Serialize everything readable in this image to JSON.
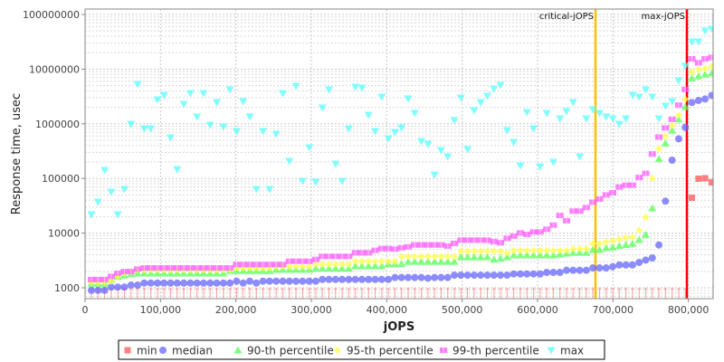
{
  "chart_data": {
    "type": "scatter",
    "title": "",
    "xlabel": "jOPS",
    "ylabel": "Response time, usec",
    "xlim": [
      0,
      833000
    ],
    "ylim": [
      630,
      126000000
    ],
    "yscale": "log",
    "grid": true,
    "legend_position": "bottom",
    "x_ticks": [
      0,
      100000,
      200000,
      300000,
      400000,
      500000,
      600000,
      700000,
      800000
    ],
    "x_tick_labels": [
      "0",
      "100,000",
      "200,000",
      "300,000",
      "400,000",
      "500,000",
      "600,000",
      "700,000",
      "800,000"
    ],
    "y_ticks": [
      1000,
      10000,
      100000,
      1000000,
      10000000,
      100000000
    ],
    "y_tick_labels": [
      "1000",
      "10000",
      "100000",
      "1000000",
      "10000000",
      "100000000"
    ],
    "annotations": [
      {
        "label": "critical-jOPS",
        "x": 676800,
        "color": "#ffc000"
      },
      {
        "label": "max-jOPS",
        "x": 798000,
        "color": "#ff0000"
      }
    ],
    "x": [
      8400,
      17150,
      25900,
      34650,
      43400,
      52150,
      60900,
      69650,
      78400,
      87150,
      95900,
      104650,
      113400,
      122150,
      130900,
      139650,
      148400,
      157150,
      165900,
      174650,
      183400,
      192150,
      200900,
      209650,
      218400,
      227150,
      235900,
      244650,
      253400,
      262150,
      270900,
      279650,
      288400,
      297150,
      305900,
      314650,
      323400,
      332150,
      340900,
      349650,
      358400,
      367150,
      375900,
      384650,
      393400,
      402150,
      410900,
      419650,
      428400,
      437150,
      445900,
      454650,
      463400,
      472150,
      480900,
      489650,
      498400,
      507150,
      515900,
      524650,
      533400,
      542150,
      550900,
      559650,
      568400,
      577150,
      585900,
      594650,
      603400,
      612150,
      620900,
      629650,
      638400,
      647150,
      655900,
      664650,
      673400,
      682150,
      690900,
      699650,
      708400,
      717150,
      725900,
      734650,
      743400,
      752150,
      760900,
      769650,
      778400,
      787150,
      795900,
      804650,
      813400,
      822150,
      830900
    ],
    "series": [
      {
        "name": "min",
        "marker": "square",
        "color": "#ff5555",
        "values": [
          500,
          500,
          500,
          500,
          500,
          500,
          500,
          500,
          500,
          500,
          500,
          500,
          500,
          500,
          500,
          500,
          500,
          500,
          500,
          500,
          500,
          500,
          500,
          500,
          500,
          500,
          500,
          500,
          500,
          500,
          500,
          500,
          500,
          500,
          500,
          500,
          500,
          500,
          500,
          500,
          500,
          500,
          500,
          500,
          500,
          500,
          500,
          500,
          500,
          500,
          500,
          500,
          500,
          500,
          500,
          500,
          500,
          500,
          500,
          500,
          500,
          500,
          500,
          500,
          500,
          500,
          500,
          500,
          500,
          500,
          500,
          500,
          500,
          500,
          500,
          500,
          500,
          500,
          500,
          500,
          500,
          500,
          500,
          500,
          500,
          500,
          500,
          500,
          500,
          500,
          500,
          44500,
          99000,
          101000,
          85000
        ]
      },
      {
        "name": "median",
        "marker": "circle",
        "color": "#6666ff",
        "values": [
          900,
          900,
          900,
          1030,
          1030,
          1030,
          1120,
          1120,
          1220,
          1220,
          1220,
          1220,
          1220,
          1220,
          1220,
          1220,
          1220,
          1220,
          1220,
          1220,
          1220,
          1220,
          1320,
          1220,
          1320,
          1220,
          1320,
          1320,
          1320,
          1320,
          1320,
          1320,
          1320,
          1320,
          1320,
          1420,
          1420,
          1420,
          1420,
          1420,
          1420,
          1420,
          1420,
          1420,
          1420,
          1420,
          1540,
          1540,
          1540,
          1540,
          1540,
          1500,
          1540,
          1540,
          1540,
          1700,
          1700,
          1700,
          1700,
          1700,
          1700,
          1700,
          1700,
          1700,
          1790,
          1790,
          1790,
          1790,
          1790,
          1910,
          1910,
          1910,
          2090,
          2090,
          2090,
          2090,
          2310,
          2310,
          2310,
          2430,
          2620,
          2620,
          2620,
          2910,
          3220,
          3520,
          6070,
          38400,
          216000,
          531000,
          860000,
          2450000,
          2670000,
          2840000,
          3300000
        ]
      },
      {
        "name": "90-th percentile",
        "marker": "triangle-up",
        "color": "#55ff55",
        "values": [
          1200,
          1200,
          1200,
          1400,
          1600,
          1690,
          1790,
          1840,
          1840,
          1840,
          1840,
          1840,
          1840,
          1840,
          1840,
          1840,
          1840,
          1840,
          1840,
          1840,
          1840,
          2040,
          2040,
          2040,
          2040,
          2040,
          2040,
          2040,
          2150,
          2150,
          2150,
          2150,
          2150,
          2150,
          2250,
          2250,
          2250,
          2250,
          2250,
          2250,
          2500,
          2500,
          2500,
          2500,
          2500,
          2730,
          2730,
          2730,
          3000,
          3000,
          3000,
          3000,
          3000,
          3000,
          3000,
          3000,
          3650,
          3650,
          3650,
          3650,
          3650,
          3300,
          3450,
          3650,
          3940,
          3940,
          3940,
          3940,
          3940,
          3940,
          3940,
          4100,
          4260,
          4400,
          4400,
          4400,
          4960,
          4960,
          5350,
          5500,
          5830,
          6100,
          6410,
          7540,
          9350,
          28600,
          227000,
          439000,
          756000,
          1210000,
          2040000,
          6800000,
          7400000,
          8000000,
          8400000
        ]
      },
      {
        "name": "95-th percentile",
        "marker": "diamond",
        "color": "#ffff44",
        "values": [
          1250,
          1250,
          1250,
          1320,
          1620,
          1870,
          1980,
          2120,
          2120,
          2120,
          2120,
          2120,
          2120,
          2120,
          2120,
          2120,
          2120,
          2120,
          2120,
          2120,
          2120,
          2120,
          2300,
          2300,
          2300,
          2300,
          2300,
          2300,
          2450,
          2450,
          2450,
          2450,
          2450,
          2450,
          2700,
          2700,
          2700,
          2700,
          2700,
          2700,
          3050,
          3050,
          3050,
          3050,
          3050,
          3050,
          3050,
          3750,
          3750,
          3750,
          3750,
          3750,
          3750,
          3750,
          3750,
          3750,
          4650,
          4650,
          4650,
          4650,
          4650,
          4650,
          4650,
          4300,
          4800,
          4800,
          4800,
          4800,
          4800,
          4800,
          4800,
          4800,
          4800,
          5160,
          5160,
          5160,
          6410,
          6410,
          6910,
          7200,
          7720,
          8240,
          8400,
          11300,
          19500,
          101000,
          350000,
          590000,
          935000,
          1440000,
          2800000,
          8900000,
          9800000,
          10200000,
          11200000
        ]
      },
      {
        "name": "99-th percentile",
        "marker": "plus-square",
        "color": "#ff55ff",
        "values": [
          1420,
          1420,
          1420,
          1620,
          1840,
          1980,
          1980,
          2200,
          2310,
          2310,
          2310,
          2310,
          2310,
          2310,
          2310,
          2310,
          2310,
          2310,
          2310,
          2310,
          2310,
          2310,
          2660,
          2660,
          2660,
          2660,
          2660,
          2660,
          2660,
          2660,
          3050,
          3050,
          3050,
          3050,
          3300,
          3760,
          3760,
          3760,
          3760,
          3760,
          4370,
          4370,
          4370,
          4850,
          5210,
          5210,
          5100,
          5400,
          5620,
          6070,
          6070,
          6070,
          6070,
          6070,
          5800,
          6500,
          7440,
          7440,
          7440,
          7440,
          7440,
          7000,
          6700,
          8050,
          8820,
          10100,
          9480,
          10500,
          10500,
          11800,
          14000,
          21100,
          16900,
          25300,
          25300,
          29400,
          36800,
          42000,
          50000,
          54700,
          69700,
          75400,
          75400,
          104000,
          124000,
          281000,
          573000,
          840000,
          1210000,
          2200000,
          4250000,
          15400000,
          13100000,
          15400000,
          16400000
        ]
      },
      {
        "name": "max",
        "marker": "triangle-down",
        "color": "#55ffff",
        "values": [
          21900,
          37400,
          142000,
          56900,
          21900,
          63800,
          993000,
          5310000,
          820000,
          820000,
          2780000,
          3360000,
          560000,
          147000,
          2300000,
          3630000,
          1350000,
          3630000,
          955000,
          2480000,
          885000,
          4230000,
          731000,
          2580000,
          1350000,
          63800,
          731000,
          63800,
          653000,
          3630000,
          208000,
          4920000,
          89900,
          368000,
          86500,
          1970000,
          4230000,
          185000,
          89900,
          820000,
          4730000,
          4560000,
          1450000,
          731000,
          3110000,
          540000,
          704000,
          851000,
          2880000,
          1570000,
          481000,
          429000,
          117000,
          329000,
          252000,
          1160000,
          3000000,
          341000,
          1760000,
          2480000,
          3240000,
          4390000,
          5110000,
          760000,
          463000,
          172000,
          1630000,
          820000,
          165000,
          1570000,
          200000,
          1250000,
          1690000,
          2480000,
          252000,
          1250000,
          1830000,
          1570000,
          1350000,
          1250000,
          993000,
          1250000,
          3360000,
          3110000,
          4230000,
          3110000,
          1250000,
          2130000,
          2580000,
          6180000,
          11400000,
          31800000,
          31800000,
          50400000,
          54300000
        ]
      }
    ]
  }
}
